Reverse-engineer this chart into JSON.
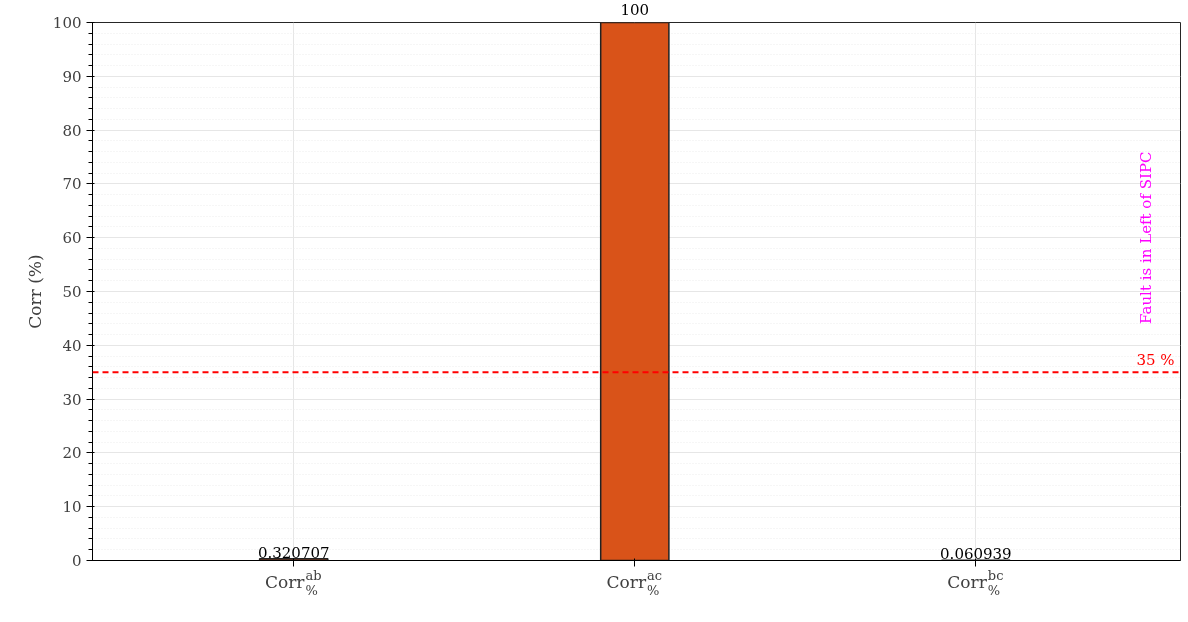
{
  "chart_data": {
    "type": "bar",
    "ylabel": "Corr (%)",
    "categories": [
      "Corr$^{ab}$$_{%}$",
      "Corr$^{ac}$$_{%}$",
      "Corr$^{bc}$$_{%}$"
    ],
    "values": [
      0.320707,
      100,
      0.060939
    ],
    "color": "#d95319",
    "data_labels": true,
    "ylim": [
      0,
      100
    ],
    "yticks": [
      0,
      10,
      20,
      30,
      40,
      50,
      60,
      70,
      80,
      90,
      100
    ],
    "grid": true,
    "ref_lines": [
      {
        "axis": "y",
        "value": 35,
        "label": "35 %",
        "color": "#ff0000",
        "line_style": "dashed"
      }
    ],
    "annotations": [
      "Fault is in Left of SIPC"
    ]
  }
}
